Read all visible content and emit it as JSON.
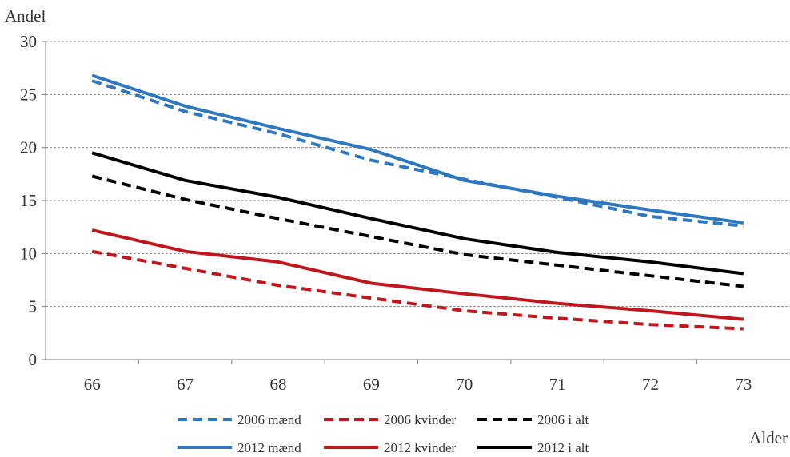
{
  "chart_data": {
    "type": "line",
    "title": "",
    "ylabel": "Andel",
    "xlabel": "Alder",
    "x": [
      66,
      67,
      68,
      69,
      70,
      71,
      72,
      73
    ],
    "ylim": [
      0,
      30
    ],
    "yticks": [
      0,
      5,
      10,
      15,
      20,
      25,
      30
    ],
    "grid": "horizontal-dashed",
    "legend_position": "bottom",
    "series": [
      {
        "name": "2006 mænd",
        "color": "#2E78C0",
        "dash": true,
        "values": [
          26.3,
          23.4,
          21.3,
          18.8,
          17.0,
          15.3,
          13.5,
          12.6
        ]
      },
      {
        "name": "2006 kvinder",
        "color": "#C0171D",
        "dash": true,
        "values": [
          10.2,
          8.6,
          7.0,
          5.8,
          4.6,
          3.9,
          3.3,
          2.9
        ]
      },
      {
        "name": "2006 i alt",
        "color": "#000000",
        "dash": true,
        "values": [
          17.3,
          15.1,
          13.3,
          11.6,
          9.9,
          8.9,
          7.9,
          6.9
        ]
      },
      {
        "name": "2012 mænd",
        "color": "#2E78C0",
        "dash": false,
        "values": [
          26.8,
          23.9,
          21.8,
          19.8,
          16.9,
          15.4,
          14.1,
          12.9
        ]
      },
      {
        "name": "2012 kvinder",
        "color": "#C0171D",
        "dash": false,
        "values": [
          12.2,
          10.2,
          9.2,
          7.2,
          6.2,
          5.3,
          4.6,
          3.8
        ]
      },
      {
        "name": "2012 i alt",
        "color": "#000000",
        "dash": false,
        "values": [
          19.5,
          16.9,
          15.3,
          13.3,
          11.4,
          10.1,
          9.2,
          8.1
        ]
      }
    ]
  }
}
